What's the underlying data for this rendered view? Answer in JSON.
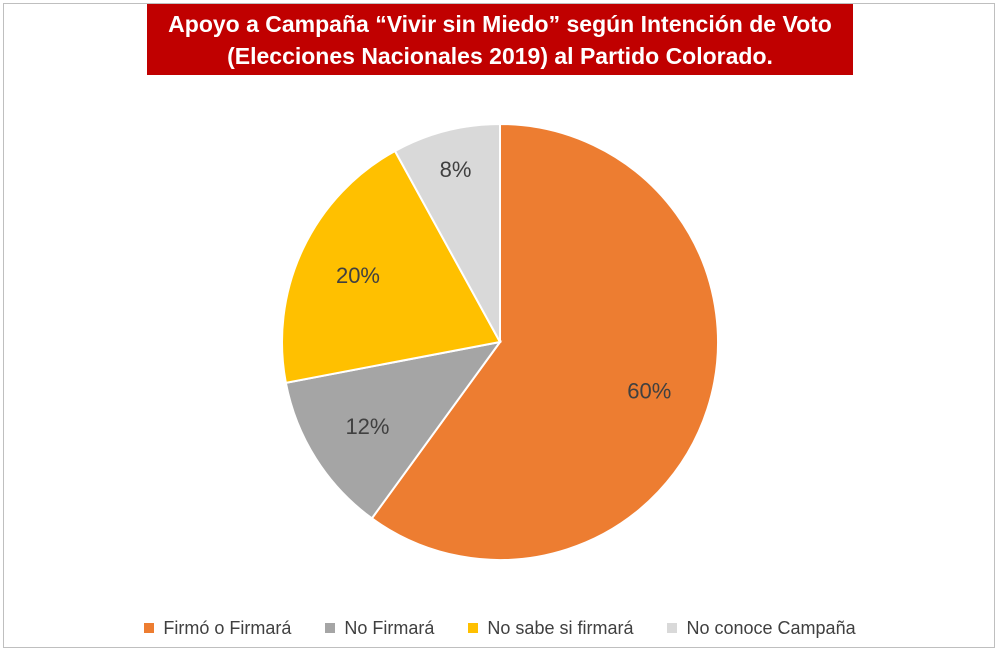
{
  "chart_data": {
    "type": "pie",
    "title": "Apoyo a Campaña “Vivir sin Miedo” según Intención de Voto (Elecciones Nacionales 2019) al Partido Colorado.",
    "title_lines": [
      "Apoyo a Campaña “Vivir sin Miedo” según Intención de Voto",
      "(Elecciones Nacionales 2019) al Partido Colorado."
    ],
    "categories": [
      "Firmó o Firmará",
      "No Firmará",
      "No sabe si firmará",
      "No conoce Campaña"
    ],
    "values": [
      60,
      12,
      20,
      8
    ],
    "labels": [
      "60%",
      "12%",
      "20%",
      "8%"
    ],
    "colors": [
      "#ed7d31",
      "#a5a5a5",
      "#ffc000",
      "#d9d9d9"
    ],
    "legend_position": "bottom",
    "start_angle": "12 o'clock",
    "direction": "clockwise"
  },
  "colors": {
    "title_background": "#c00000",
    "title_text": "#ffffff",
    "label_text": "#404040"
  }
}
